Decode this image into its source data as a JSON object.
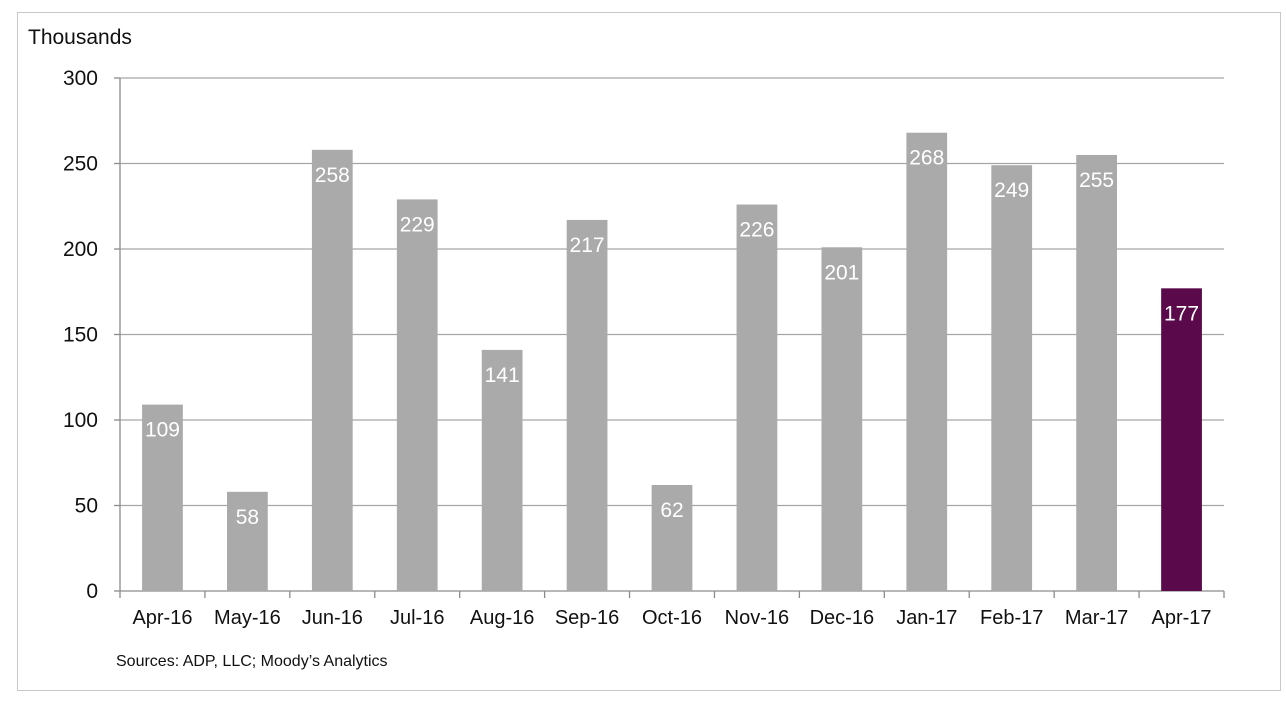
{
  "chart_data": {
    "type": "bar",
    "ylabel": "Thousands",
    "categories": [
      "Apr-16",
      "May-16",
      "Jun-16",
      "Jul-16",
      "Aug-16",
      "Sep-16",
      "Oct-16",
      "Nov-16",
      "Dec-16",
      "Jan-17",
      "Feb-17",
      "Mar-17",
      "Apr-17"
    ],
    "values": [
      109,
      58,
      258,
      229,
      141,
      217,
      62,
      226,
      201,
      268,
      249,
      255,
      177
    ],
    "ylim": [
      0,
      300
    ],
    "yticks": [
      0,
      50,
      100,
      150,
      200,
      250,
      300
    ],
    "grid": true,
    "colors": {
      "default": "#a9aaa9",
      "highlight": "#5a0a4a"
    },
    "highlight_index": 12,
    "source": "Sources: ADP, LLC; Moody’s Analytics"
  }
}
